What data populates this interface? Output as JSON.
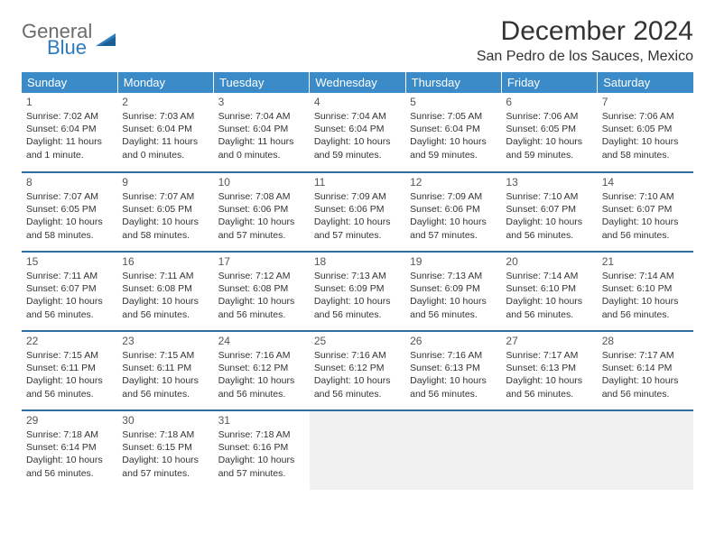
{
  "brand": {
    "part1": "General",
    "part2": "Blue"
  },
  "title": "December 2024",
  "location": "San Pedro de los Sauces, Mexico",
  "colors": {
    "header_bg": "#3b8bc8",
    "header_text": "#ffffff",
    "row_divider": "#2d6ea5",
    "brand_gray": "#6b6b6b",
    "brand_blue": "#2d7bbf",
    "empty_bg": "#f1f1f1"
  },
  "weekdays": [
    "Sunday",
    "Monday",
    "Tuesday",
    "Wednesday",
    "Thursday",
    "Friday",
    "Saturday"
  ],
  "days": [
    {
      "n": "1",
      "sunrise": "Sunrise: 7:02 AM",
      "sunset": "Sunset: 6:04 PM",
      "daylight": "Daylight: 11 hours and 1 minute."
    },
    {
      "n": "2",
      "sunrise": "Sunrise: 7:03 AM",
      "sunset": "Sunset: 6:04 PM",
      "daylight": "Daylight: 11 hours and 0 minutes."
    },
    {
      "n": "3",
      "sunrise": "Sunrise: 7:04 AM",
      "sunset": "Sunset: 6:04 PM",
      "daylight": "Daylight: 11 hours and 0 minutes."
    },
    {
      "n": "4",
      "sunrise": "Sunrise: 7:04 AM",
      "sunset": "Sunset: 6:04 PM",
      "daylight": "Daylight: 10 hours and 59 minutes."
    },
    {
      "n": "5",
      "sunrise": "Sunrise: 7:05 AM",
      "sunset": "Sunset: 6:04 PM",
      "daylight": "Daylight: 10 hours and 59 minutes."
    },
    {
      "n": "6",
      "sunrise": "Sunrise: 7:06 AM",
      "sunset": "Sunset: 6:05 PM",
      "daylight": "Daylight: 10 hours and 59 minutes."
    },
    {
      "n": "7",
      "sunrise": "Sunrise: 7:06 AM",
      "sunset": "Sunset: 6:05 PM",
      "daylight": "Daylight: 10 hours and 58 minutes."
    },
    {
      "n": "8",
      "sunrise": "Sunrise: 7:07 AM",
      "sunset": "Sunset: 6:05 PM",
      "daylight": "Daylight: 10 hours and 58 minutes."
    },
    {
      "n": "9",
      "sunrise": "Sunrise: 7:07 AM",
      "sunset": "Sunset: 6:05 PM",
      "daylight": "Daylight: 10 hours and 58 minutes."
    },
    {
      "n": "10",
      "sunrise": "Sunrise: 7:08 AM",
      "sunset": "Sunset: 6:06 PM",
      "daylight": "Daylight: 10 hours and 57 minutes."
    },
    {
      "n": "11",
      "sunrise": "Sunrise: 7:09 AM",
      "sunset": "Sunset: 6:06 PM",
      "daylight": "Daylight: 10 hours and 57 minutes."
    },
    {
      "n": "12",
      "sunrise": "Sunrise: 7:09 AM",
      "sunset": "Sunset: 6:06 PM",
      "daylight": "Daylight: 10 hours and 57 minutes."
    },
    {
      "n": "13",
      "sunrise": "Sunrise: 7:10 AM",
      "sunset": "Sunset: 6:07 PM",
      "daylight": "Daylight: 10 hours and 56 minutes."
    },
    {
      "n": "14",
      "sunrise": "Sunrise: 7:10 AM",
      "sunset": "Sunset: 6:07 PM",
      "daylight": "Daylight: 10 hours and 56 minutes."
    },
    {
      "n": "15",
      "sunrise": "Sunrise: 7:11 AM",
      "sunset": "Sunset: 6:07 PM",
      "daylight": "Daylight: 10 hours and 56 minutes."
    },
    {
      "n": "16",
      "sunrise": "Sunrise: 7:11 AM",
      "sunset": "Sunset: 6:08 PM",
      "daylight": "Daylight: 10 hours and 56 minutes."
    },
    {
      "n": "17",
      "sunrise": "Sunrise: 7:12 AM",
      "sunset": "Sunset: 6:08 PM",
      "daylight": "Daylight: 10 hours and 56 minutes."
    },
    {
      "n": "18",
      "sunrise": "Sunrise: 7:13 AM",
      "sunset": "Sunset: 6:09 PM",
      "daylight": "Daylight: 10 hours and 56 minutes."
    },
    {
      "n": "19",
      "sunrise": "Sunrise: 7:13 AM",
      "sunset": "Sunset: 6:09 PM",
      "daylight": "Daylight: 10 hours and 56 minutes."
    },
    {
      "n": "20",
      "sunrise": "Sunrise: 7:14 AM",
      "sunset": "Sunset: 6:10 PM",
      "daylight": "Daylight: 10 hours and 56 minutes."
    },
    {
      "n": "21",
      "sunrise": "Sunrise: 7:14 AM",
      "sunset": "Sunset: 6:10 PM",
      "daylight": "Daylight: 10 hours and 56 minutes."
    },
    {
      "n": "22",
      "sunrise": "Sunrise: 7:15 AM",
      "sunset": "Sunset: 6:11 PM",
      "daylight": "Daylight: 10 hours and 56 minutes."
    },
    {
      "n": "23",
      "sunrise": "Sunrise: 7:15 AM",
      "sunset": "Sunset: 6:11 PM",
      "daylight": "Daylight: 10 hours and 56 minutes."
    },
    {
      "n": "24",
      "sunrise": "Sunrise: 7:16 AM",
      "sunset": "Sunset: 6:12 PM",
      "daylight": "Daylight: 10 hours and 56 minutes."
    },
    {
      "n": "25",
      "sunrise": "Sunrise: 7:16 AM",
      "sunset": "Sunset: 6:12 PM",
      "daylight": "Daylight: 10 hours and 56 minutes."
    },
    {
      "n": "26",
      "sunrise": "Sunrise: 7:16 AM",
      "sunset": "Sunset: 6:13 PM",
      "daylight": "Daylight: 10 hours and 56 minutes."
    },
    {
      "n": "27",
      "sunrise": "Sunrise: 7:17 AM",
      "sunset": "Sunset: 6:13 PM",
      "daylight": "Daylight: 10 hours and 56 minutes."
    },
    {
      "n": "28",
      "sunrise": "Sunrise: 7:17 AM",
      "sunset": "Sunset: 6:14 PM",
      "daylight": "Daylight: 10 hours and 56 minutes."
    },
    {
      "n": "29",
      "sunrise": "Sunrise: 7:18 AM",
      "sunset": "Sunset: 6:14 PM",
      "daylight": "Daylight: 10 hours and 56 minutes."
    },
    {
      "n": "30",
      "sunrise": "Sunrise: 7:18 AM",
      "sunset": "Sunset: 6:15 PM",
      "daylight": "Daylight: 10 hours and 57 minutes."
    },
    {
      "n": "31",
      "sunrise": "Sunrise: 7:18 AM",
      "sunset": "Sunset: 6:16 PM",
      "daylight": "Daylight: 10 hours and 57 minutes."
    }
  ]
}
